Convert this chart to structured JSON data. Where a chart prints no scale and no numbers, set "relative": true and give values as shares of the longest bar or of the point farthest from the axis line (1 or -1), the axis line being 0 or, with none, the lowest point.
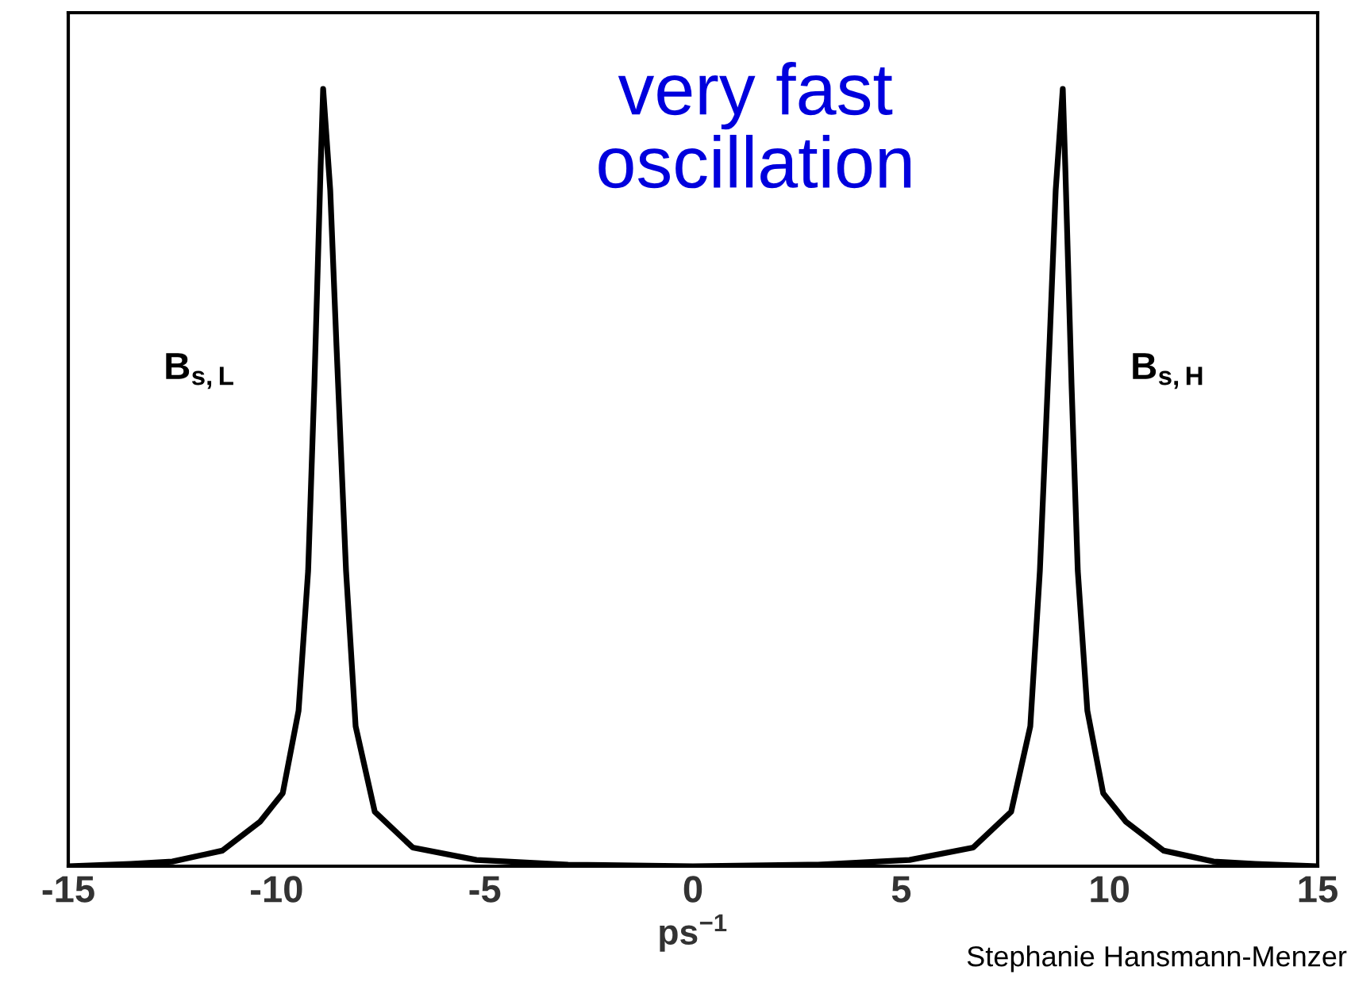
{
  "chart_data": {
    "type": "line",
    "relative": true,
    "xlabel": "ps$^{−1}$",
    "xlim": [
      -15,
      15
    ],
    "xticks": [
      -15,
      -10,
      -5,
      0,
      5,
      10,
      15
    ],
    "tick_labels": "x",
    "grid": false,
    "legend": false,
    "marker": "none",
    "line_style": "solid",
    "series": [
      {
        "color": "#000000",
        "x": [
          -15,
          -13.5,
          -12.5,
          -11.3,
          -10.4,
          -9.85,
          -9.47,
          -9.24,
          -9.09,
          -8.94,
          -8.88,
          -8.71,
          -8.56,
          -8.33,
          -8.1,
          -7.64,
          -6.73,
          -5.2,
          -3,
          0,
          3,
          5.2,
          6.73,
          7.64,
          8.1,
          8.33,
          8.56,
          8.71,
          8.88,
          8.94,
          9.09,
          9.24,
          9.47,
          9.85,
          10.4,
          11.3,
          12.5,
          13.5,
          15
        ],
        "values": [
          0.0,
          0.003,
          0.006,
          0.02,
          0.057,
          0.094,
          0.2,
          0.38,
          0.62,
          0.9,
          1.0,
          0.87,
          0.67,
          0.38,
          0.18,
          0.07,
          0.024,
          0.008,
          0.002,
          0.0,
          0.002,
          0.008,
          0.024,
          0.07,
          0.18,
          0.38,
          0.67,
          0.87,
          1.0,
          0.9,
          0.62,
          0.38,
          0.2,
          0.094,
          0.057,
          0.02,
          0.006,
          0.003,
          0.0
        ]
      }
    ],
    "annotations": [
      "very fast\noscillation",
      "B$_{s,L}$",
      "B$_{s,H}$",
      "Stephanie Hansmann-Menzer"
    ]
  }
}
